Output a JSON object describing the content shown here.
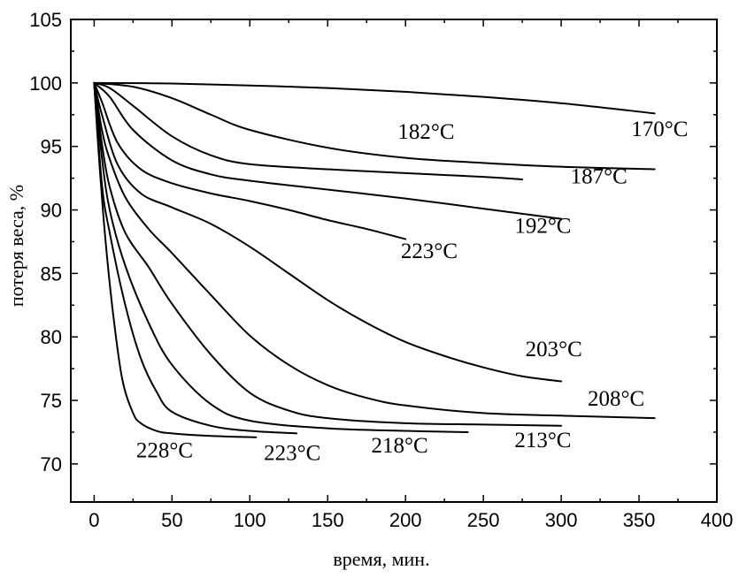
{
  "chart_data": {
    "type": "line",
    "title": "",
    "xlabel": "время, мин.",
    "ylabel": "потеря веса, %",
    "xlim": [
      -15,
      400
    ],
    "ylim": [
      67,
      105
    ],
    "x_ticks": [
      0,
      50,
      100,
      150,
      200,
      250,
      300,
      350,
      400
    ],
    "y_ticks": [
      70,
      75,
      80,
      85,
      90,
      95,
      100,
      105
    ],
    "grid": false,
    "legend": "none",
    "series": [
      {
        "name": "170°C",
        "label_x": 345,
        "label_y": 95.8,
        "x": [
          0,
          50,
          100,
          150,
          200,
          250,
          300,
          360
        ],
        "y": [
          100,
          99.95,
          99.8,
          99.6,
          99.3,
          98.9,
          98.4,
          97.6
        ]
      },
      {
        "name": "182°C",
        "label_x": 195,
        "label_y": 95.6,
        "x": [
          0,
          25,
          50,
          75,
          100,
          150,
          200,
          250,
          300,
          360
        ],
        "y": [
          100,
          99.7,
          98.8,
          97.5,
          96.3,
          94.9,
          94.1,
          93.7,
          93.4,
          93.2
        ]
      },
      {
        "name": "187°C",
        "label_x": 306,
        "label_y": 92.1,
        "x": [
          0,
          10,
          25,
          50,
          75,
          100,
          150,
          200,
          250,
          275
        ],
        "y": [
          100,
          99.6,
          98.2,
          95.8,
          94.3,
          93.6,
          93.2,
          92.9,
          92.6,
          92.4
        ]
      },
      {
        "name": "192°C",
        "label_x": 270,
        "label_y": 88.2,
        "x": [
          0,
          10,
          25,
          50,
          75,
          100,
          150,
          200,
          250,
          300
        ],
        "y": [
          100,
          98.9,
          96.3,
          93.9,
          92.8,
          92.3,
          91.6,
          90.9,
          90.1,
          89.3
        ]
      },
      {
        "name": "223°C",
        "label_x": 197,
        "label_y": 86.2,
        "x": [
          0,
          5,
          15,
          30,
          50,
          75,
          100,
          125,
          150,
          175,
          200
        ],
        "y": [
          100,
          98.5,
          95.3,
          93.2,
          92.1,
          91.3,
          90.7,
          90.0,
          89.2,
          88.5,
          87.7
        ]
      },
      {
        "name": "203°C",
        "label_x": 277,
        "label_y": 78.5,
        "x": [
          0,
          5,
          15,
          30,
          50,
          75,
          100,
          125,
          150,
          175,
          200,
          225,
          250,
          275,
          300
        ],
        "y": [
          100,
          97.5,
          93.6,
          91.3,
          90.2,
          88.9,
          87.1,
          85.0,
          82.9,
          81.1,
          79.6,
          78.5,
          77.6,
          76.9,
          76.5
        ]
      },
      {
        "name": "208°C",
        "label_x": 317,
        "label_y": 74.6,
        "x": [
          0,
          5,
          10,
          20,
          35,
          50,
          75,
          100,
          125,
          150,
          175,
          200,
          250,
          300,
          360
        ],
        "y": [
          100,
          96.3,
          94.0,
          91.0,
          88.5,
          86.6,
          83.3,
          80.1,
          77.8,
          76.2,
          75.2,
          74.6,
          74.0,
          73.8,
          73.6
        ]
      },
      {
        "name": "213°C",
        "label_x": 270,
        "label_y": 71.3,
        "x": [
          0,
          5,
          10,
          20,
          35,
          50,
          75,
          100,
          125,
          150,
          200,
          250,
          300
        ],
        "y": [
          100,
          95.2,
          91.8,
          88.2,
          85.5,
          82.6,
          78.6,
          75.6,
          74.2,
          73.6,
          73.2,
          73.1,
          73.0
        ]
      },
      {
        "name": "218°C",
        "label_x": 178,
        "label_y": 70.9,
        "x": [
          0,
          5,
          10,
          20,
          35,
          50,
          75,
          100,
          150,
          200,
          240
        ],
        "y": [
          100,
          94.1,
          90.0,
          85.6,
          81.1,
          77.8,
          74.7,
          73.4,
          72.8,
          72.6,
          72.5
        ]
      },
      {
        "name": "223°C",
        "label_x": 109,
        "label_y": 70.3,
        "x": [
          0,
          5,
          10,
          20,
          30,
          40,
          50,
          75,
          100,
          130
        ],
        "y": [
          100,
          92.0,
          88.2,
          82.5,
          78.3,
          75.7,
          74.1,
          73.0,
          72.6,
          72.4
        ]
      },
      {
        "name": "228°C",
        "label_x": 27,
        "label_y": 70.5,
        "x": [
          0,
          3,
          7,
          12,
          18,
          25,
          30,
          40,
          50,
          75,
          104
        ],
        "y": [
          100,
          94.3,
          88.0,
          82.0,
          76.7,
          74.0,
          73.2,
          72.6,
          72.4,
          72.2,
          72.1
        ]
      }
    ]
  }
}
